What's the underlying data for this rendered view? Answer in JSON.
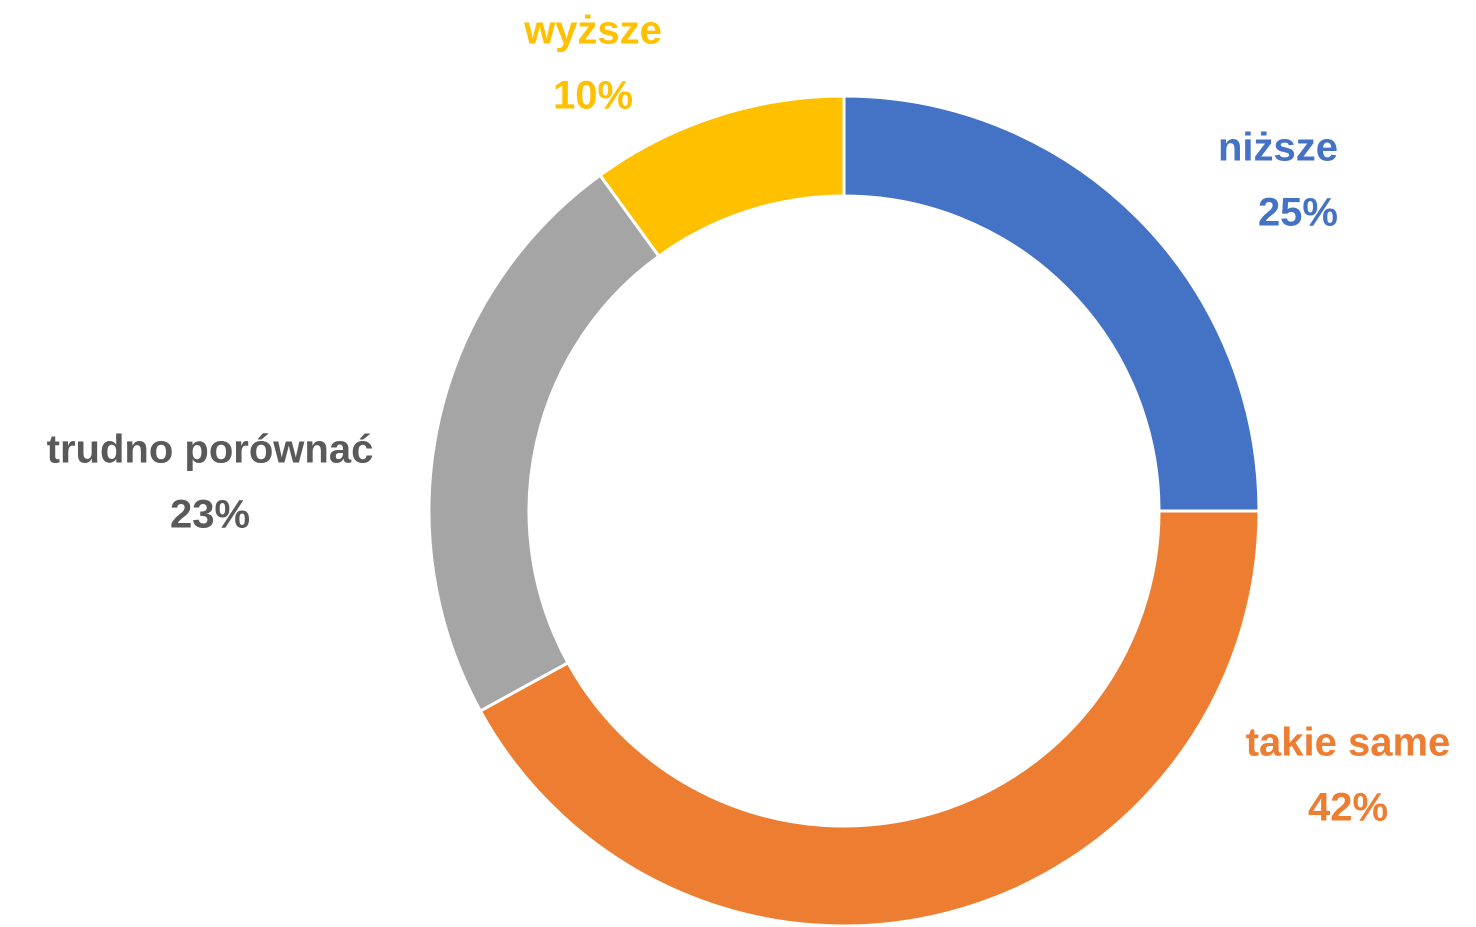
{
  "chart_data": {
    "type": "donut",
    "categories": [
      "niższe",
      "takie same",
      "trudno porównać",
      "wyższe"
    ],
    "values": [
      25,
      42,
      23,
      10
    ],
    "value_labels": [
      "25%",
      "42%",
      "23%",
      "10%"
    ],
    "colors": [
      "#4472c4",
      "#ed7d31",
      "#a5a5a5",
      "#ffc000"
    ],
    "label_colors": [
      "#4472c4",
      "#ed7d31",
      "#595959",
      "#ffc000"
    ]
  }
}
